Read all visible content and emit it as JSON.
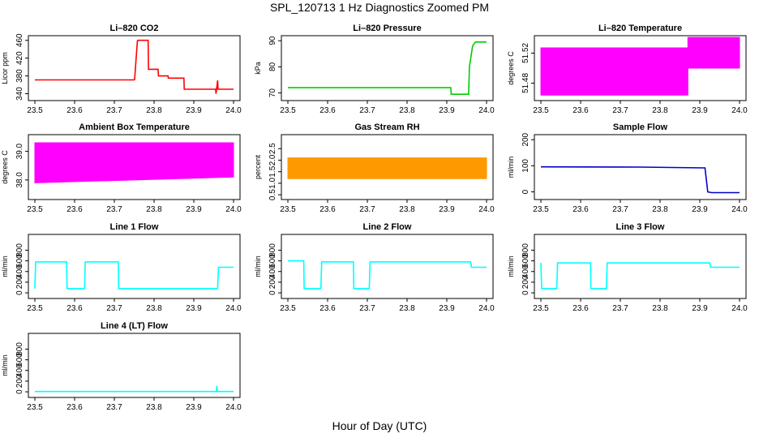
{
  "figure": {
    "title": "SPL_120713  1 Hz Diagnostics Zoomed PM",
    "xlabel": "Hour of Day (UTC)"
  },
  "chart_data": [
    {
      "type": "line",
      "title": "Li–820 CO2",
      "ylabel": "Licor ppm",
      "color": "#ff0000",
      "xlim": [
        23.5,
        24.0
      ],
      "ylim": [
        330,
        465
      ],
      "xticks": [
        23.5,
        23.6,
        23.7,
        23.8,
        23.9,
        24.0
      ],
      "xtick_labels": [
        "23.5",
        "23.6",
        "23.7",
        "23.8",
        "23.9",
        "24.0"
      ],
      "yticks": [
        340,
        380,
        420,
        460
      ],
      "ytick_labels": [
        "340",
        "380",
        "420",
        "460"
      ],
      "series": [
        {
          "x": [
            23.5,
            23.75,
            23.751,
            23.758,
            23.759,
            23.785,
            23.786,
            23.81,
            23.811,
            23.835,
            23.836,
            23.875,
            23.876,
            23.955,
            23.956,
            23.96,
            23.961,
            24.0
          ],
          "y": [
            371,
            371,
            372,
            458,
            460,
            460,
            395,
            395,
            380,
            380,
            375,
            375,
            350,
            350,
            340,
            370,
            350,
            350
          ]
        }
      ]
    },
    {
      "type": "line",
      "title": "Li–820 Pressure",
      "ylabel": "kPa",
      "color": "#00cc00",
      "xlim": [
        23.5,
        24.0
      ],
      "ylim": [
        68,
        91
      ],
      "xticks": [
        23.5,
        23.6,
        23.7,
        23.8,
        23.9,
        24.0
      ],
      "xtick_labels": [
        "23.5",
        "23.6",
        "23.7",
        "23.8",
        "23.9",
        "24.0"
      ],
      "yticks": [
        70,
        80,
        90
      ],
      "ytick_labels": [
        "70",
        "80",
        "90"
      ],
      "series": [
        {
          "x": [
            23.5,
            23.91,
            23.911,
            23.955,
            23.957,
            23.965,
            23.972,
            24.0
          ],
          "y": [
            72,
            72,
            69.5,
            69.5,
            80,
            88,
            89.5,
            89.5
          ]
        }
      ]
    },
    {
      "type": "area",
      "title": "Li–820 Temperature",
      "ylabel": "degrees C",
      "color": "#ff00ff",
      "xlim": [
        23.5,
        24.0
      ],
      "ylim": [
        51.46,
        51.54
      ],
      "xticks": [
        23.5,
        23.6,
        23.7,
        23.8,
        23.9,
        24.0
      ],
      "xtick_labels": [
        "23.5",
        "23.6",
        "23.7",
        "23.8",
        "23.9",
        "24.0"
      ],
      "yticks": [
        51.48,
        51.52
      ],
      "ytick_labels": [
        "51.48",
        "51.52"
      ],
      "series": [
        {
          "name": "",
          "x": [
            23.5,
            23.87
          ],
          "y_low": [
            51.464,
            51.464
          ],
          "y_high": [
            51.527,
            51.527
          ]
        },
        {
          "name": "",
          "x": [
            23.87,
            24.0
          ],
          "y_low": [
            51.5,
            51.5
          ],
          "y_high": [
            51.541,
            51.541
          ]
        }
      ]
    },
    {
      "type": "area",
      "title": "Ambient Box Temperature",
      "ylabel": "degrees C",
      "color": "#ff00ff",
      "xlim": [
        23.5,
        24.0
      ],
      "ylim": [
        37.4,
        39.5
      ],
      "xticks": [
        23.5,
        23.6,
        23.7,
        23.8,
        23.9,
        24.0
      ],
      "xtick_labels": [
        "23.5",
        "23.6",
        "23.7",
        "23.8",
        "23.9",
        "24.0"
      ],
      "yticks": [
        38.0,
        39.0
      ],
      "ytick_labels": [
        "38.0",
        "39.0"
      ],
      "series": [
        {
          "x": [
            23.5,
            24.0
          ],
          "y_low": [
            37.9,
            38.1
          ],
          "y_high": [
            39.3,
            39.3
          ]
        }
      ]
    },
    {
      "type": "area",
      "title": "Gas Stream RH",
      "ylabel": "percent",
      "color": "#ff9900",
      "xlim": [
        23.5,
        24.0
      ],
      "ylim": [
        0.4,
        3.0
      ],
      "xticks": [
        23.5,
        23.6,
        23.7,
        23.8,
        23.9,
        24.0
      ],
      "xtick_labels": [
        "23.5",
        "23.6",
        "23.7",
        "23.8",
        "23.9",
        "24.0"
      ],
      "yticks": [
        0.5,
        1.0,
        1.5,
        2.0,
        2.5
      ],
      "ytick_labels": [
        "0.5",
        "1.0",
        "1.5",
        "2.0",
        "2.5"
      ],
      "series": [
        {
          "x": [
            23.5,
            24.0
          ],
          "y_low": [
            1.2,
            1.2
          ],
          "y_high": [
            2.1,
            2.1
          ]
        }
      ]
    },
    {
      "type": "line",
      "title": "Sample Flow",
      "ylabel": "ml/min",
      "color": "#0000cc",
      "xlim": [
        23.5,
        24.0
      ],
      "ylim": [
        -20,
        210
      ],
      "xticks": [
        23.5,
        23.6,
        23.7,
        23.8,
        23.9,
        24.0
      ],
      "xtick_labels": [
        "23.5",
        "23.6",
        "23.7",
        "23.8",
        "23.9",
        "24.0"
      ],
      "yticks": [
        0,
        100,
        200
      ],
      "ytick_labels": [
        "0",
        "100",
        "200"
      ],
      "series": [
        {
          "x": [
            23.5,
            23.75,
            23.913,
            23.92,
            23.93,
            24.0
          ],
          "y": [
            96,
            95,
            92,
            0,
            -3,
            -3
          ]
        }
      ]
    },
    {
      "type": "line",
      "title": "Line 1 Flow",
      "ylabel": "ml/min",
      "color": "#00ffff",
      "xlim": [
        23.5,
        24.0
      ],
      "ylim": [
        -60,
        1050
      ],
      "xticks": [
        23.5,
        23.6,
        23.7,
        23.8,
        23.9,
        24.0
      ],
      "xtick_labels": [
        "23.5",
        "23.6",
        "23.7",
        "23.8",
        "23.9",
        "24.0"
      ],
      "yticks": [
        0,
        200,
        400,
        600,
        800
      ],
      "ytick_labels": [
        "0",
        "200",
        "400",
        "600",
        "800"
      ],
      "series": [
        {
          "x": [
            23.5,
            23.502,
            23.58,
            23.581,
            23.625,
            23.627,
            23.71,
            23.711,
            23.96,
            23.962,
            24.0
          ],
          "y": [
            80,
            580,
            580,
            80,
            80,
            580,
            580,
            80,
            80,
            480,
            480
          ]
        }
      ]
    },
    {
      "type": "line",
      "title": "Line 2 Flow",
      "ylabel": "ml/min",
      "color": "#00ffff",
      "xlim": [
        23.5,
        24.0
      ],
      "ylim": [
        -60,
        1050
      ],
      "xticks": [
        23.5,
        23.6,
        23.7,
        23.8,
        23.9,
        24.0
      ],
      "xtick_labels": [
        "23.5",
        "23.6",
        "23.7",
        "23.8",
        "23.9",
        "24.0"
      ],
      "yticks": [
        0,
        200,
        400,
        600,
        800
      ],
      "ytick_labels": [
        "0",
        "200",
        "400",
        "600",
        "800"
      ],
      "series": [
        {
          "x": [
            23.5,
            23.54,
            23.541,
            23.583,
            23.585,
            23.665,
            23.666,
            23.705,
            23.707,
            23.96,
            23.962,
            24.0
          ],
          "y": [
            600,
            600,
            80,
            80,
            580,
            580,
            80,
            80,
            580,
            580,
            480,
            480
          ]
        }
      ]
    },
    {
      "type": "line",
      "title": "Line 3 Flow",
      "ylabel": "ml/min",
      "color": "#00ffff",
      "xlim": [
        23.5,
        24.0
      ],
      "ylim": [
        -60,
        1050
      ],
      "xticks": [
        23.5,
        23.6,
        23.7,
        23.8,
        23.9,
        24.0
      ],
      "xtick_labels": [
        "23.5",
        "23.6",
        "23.7",
        "23.8",
        "23.9",
        "24.0"
      ],
      "yticks": [
        0,
        200,
        400,
        600,
        800
      ],
      "ytick_labels": [
        "0",
        "200",
        "400",
        "600",
        "800"
      ],
      "series": [
        {
          "x": [
            23.5,
            23.502,
            23.54,
            23.542,
            23.625,
            23.626,
            23.665,
            23.667,
            23.925,
            23.927,
            24.0
          ],
          "y": [
            560,
            80,
            80,
            560,
            560,
            80,
            80,
            560,
            560,
            480,
            480
          ]
        }
      ]
    },
    {
      "type": "line",
      "title": "Line 4 (LT) Flow",
      "ylabel": "ml/min",
      "color": "#00ffff",
      "xlim": [
        23.5,
        24.0
      ],
      "ylim": [
        -60,
        1050
      ],
      "xticks": [
        23.5,
        23.6,
        23.7,
        23.8,
        23.9,
        24.0
      ],
      "xtick_labels": [
        "23.5",
        "23.6",
        "23.7",
        "23.8",
        "23.9",
        "24.0"
      ],
      "yticks": [
        0,
        200,
        400,
        600,
        800
      ],
      "ytick_labels": [
        "0",
        "200",
        "400",
        "600",
        "800"
      ],
      "series": [
        {
          "x": [
            23.5,
            23.957,
            23.958,
            23.959,
            23.96,
            24.0
          ],
          "y": [
            5,
            5,
            110,
            5,
            5,
            5
          ]
        }
      ]
    }
  ]
}
